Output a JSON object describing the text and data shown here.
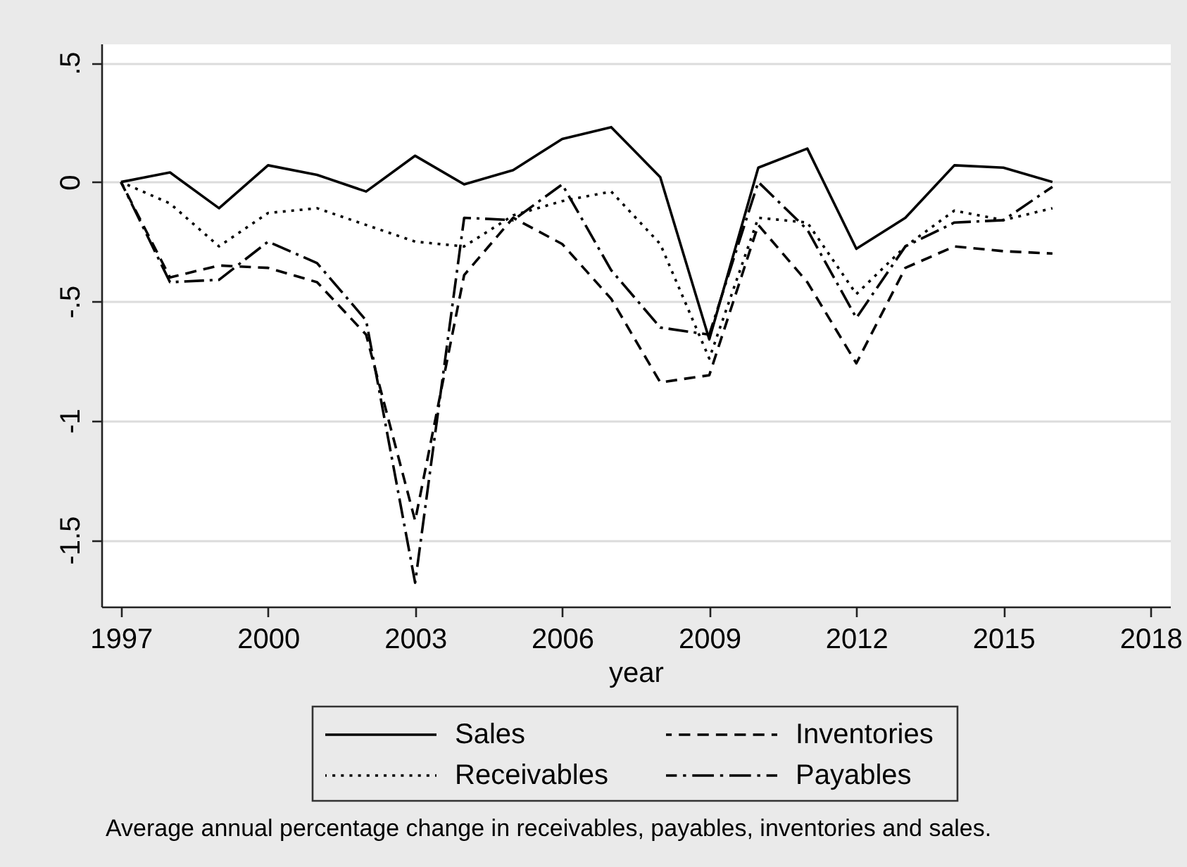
{
  "chart_data": {
    "type": "line",
    "xlabel": "year",
    "x": [
      1997,
      1998,
      1999,
      2000,
      2001,
      2002,
      2003,
      2004,
      2005,
      2006,
      2007,
      2008,
      2009,
      2010,
      2011,
      2012,
      2013,
      2014,
      2015,
      2016
    ],
    "series": [
      {
        "name": "Sales",
        "color": "#000000",
        "line_style": "solid",
        "values": [
          0,
          0.04,
          -0.11,
          0.07,
          0.03,
          -0.04,
          0.11,
          -0.01,
          0.05,
          0.18,
          0.23,
          0.02,
          -0.66,
          0.06,
          0.14,
          -0.28,
          -0.15,
          0.07,
          0.06,
          0.0
        ]
      },
      {
        "name": "Inventories",
        "color": "#000000",
        "line_style": "dashed",
        "values": [
          0,
          -0.4,
          -0.35,
          -0.36,
          -0.42,
          -0.64,
          -1.42,
          -0.39,
          -0.15,
          -0.26,
          -0.49,
          -0.84,
          -0.81,
          -0.18,
          -0.42,
          -0.76,
          -0.36,
          -0.27,
          -0.29,
          -0.3
        ]
      },
      {
        "name": "Receivables",
        "color": "#000000",
        "line_style": "dotted",
        "values": [
          0,
          -0.09,
          -0.27,
          -0.13,
          -0.11,
          -0.18,
          -0.25,
          -0.27,
          -0.14,
          -0.08,
          -0.04,
          -0.26,
          -0.74,
          -0.15,
          -0.17,
          -0.47,
          -0.27,
          -0.12,
          -0.16,
          -0.11
        ]
      },
      {
        "name": "Payables",
        "color": "#000000",
        "line_style": "dashdot",
        "values": [
          0,
          -0.42,
          -0.41,
          -0.25,
          -0.34,
          -0.58,
          -1.68,
          -0.15,
          -0.16,
          -0.01,
          -0.37,
          -0.61,
          -0.64,
          0.0,
          -0.2,
          -0.57,
          -0.27,
          -0.17,
          -0.16,
          -0.02
        ]
      }
    ],
    "xlim": [
      1996.6,
      2018.4
    ],
    "xticks": [
      1997,
      2000,
      2003,
      2006,
      2009,
      2012,
      2015,
      2018
    ],
    "ylim": [
      -1.78,
      0.58
    ],
    "yticks": [
      {
        "value": 0.5,
        "label": ".5"
      },
      0,
      {
        "value": -0.5,
        "label": "-.5"
      },
      -1,
      -1.5
    ],
    "grid": "y",
    "legend": "bottom",
    "annotations": [
      "Average annual percentage change in receivables, payables, inventories and sales."
    ]
  }
}
